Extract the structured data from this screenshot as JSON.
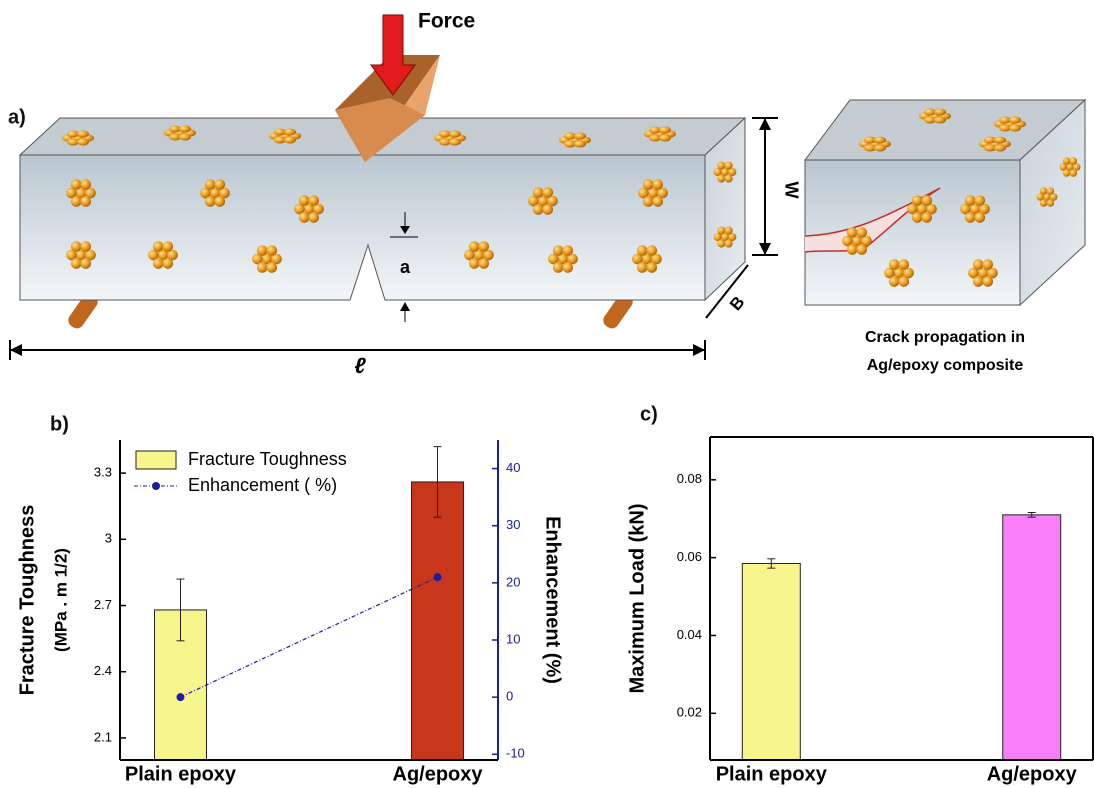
{
  "diagram": {
    "panel_label": "a)",
    "force_label": "Force",
    "width_label": "W",
    "notch_label": "a",
    "thickness_label": "B",
    "length_label": "ℓ",
    "caption": [
      "Crack propagation in",
      "Ag/epoxy composite"
    ]
  },
  "chart_data": [
    {
      "type": "bar",
      "panel_label": "b)",
      "categories": [
        "Plain epoxy",
        "Ag/epoxy"
      ],
      "ylabel": [
        "Fracture Toughness",
        "(MPa . m 1/2)"
      ],
      "y2label": "Enhancement (%)",
      "ylim": [
        2.0,
        3.45
      ],
      "yticks": [
        2.1,
        2.4,
        2.7,
        3.0,
        3.3
      ],
      "y2lim": [
        -11,
        45
      ],
      "y2ticks": [
        -10,
        0,
        10,
        20,
        30,
        40
      ],
      "legend": "upper-left",
      "series": [
        {
          "name": "Fracture Toughness",
          "colors": [
            "#f7f68c",
            "#c8361c"
          ],
          "values": [
            2.68,
            3.26
          ],
          "errors": [
            0.14,
            0.16
          ]
        },
        {
          "name": "Enhancement ( %)",
          "type": "line",
          "axis": "y2",
          "color": "#1c1ca0",
          "values": [
            0,
            21
          ]
        }
      ]
    },
    {
      "type": "bar",
      "panel_label": "c)",
      "categories": [
        "Plain epoxy",
        "Ag/epoxy"
      ],
      "ylabel": [
        "Maximum Load (kN)"
      ],
      "ylim": [
        0.008,
        0.091
      ],
      "yticks": [
        0.02,
        0.04,
        0.06,
        0.08
      ],
      "series": [
        {
          "colors": [
            "#f7f68c",
            "#f77ef7"
          ],
          "values": [
            0.0585,
            0.071
          ],
          "errors": [
            0.0012,
            0.0006
          ]
        }
      ]
    }
  ]
}
